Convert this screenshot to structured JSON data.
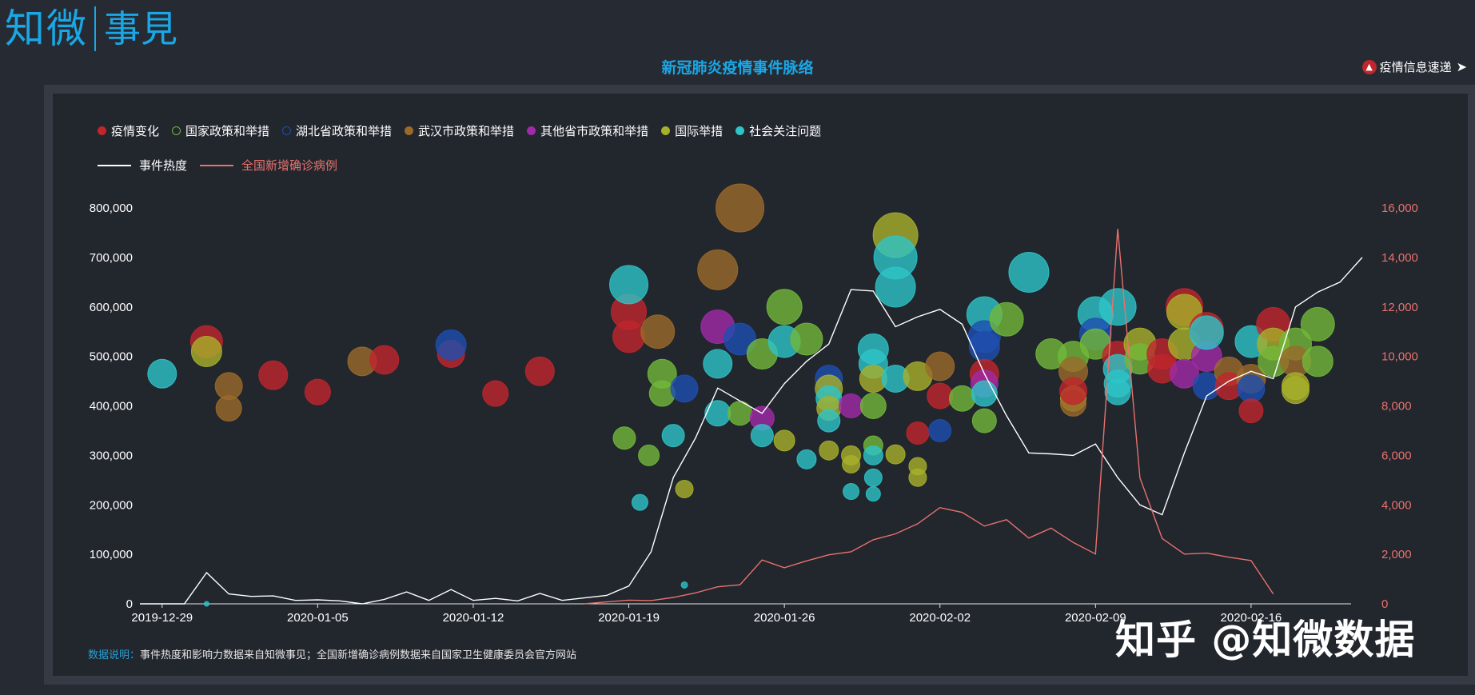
{
  "logo": {
    "main": "知微",
    "sub": "事見"
  },
  "title": "新冠肺炎疫情事件脉络",
  "top_link": {
    "label": "疫情信息速递",
    "icon": "tree-icon",
    "arrow": "arrow-right-icon"
  },
  "legend": {
    "categories": [
      {
        "name": "疫情变化",
        "color": "#c0262c",
        "style": "filled"
      },
      {
        "name": "国家政策和举措",
        "color": "#72b83a",
        "style": "hollow"
      },
      {
        "name": "湖北省政策和举措",
        "color": "#1e4fb0",
        "style": "hollow"
      },
      {
        "name": "武汉市政策和举措",
        "color": "#9b6a2a",
        "style": "filled"
      },
      {
        "name": "其他省市政策和举措",
        "color": "#a12aa8",
        "style": "filled"
      },
      {
        "name": "国际举措",
        "color": "#a8b02a",
        "style": "filled"
      },
      {
        "name": "社会关注问题",
        "color": "#2ec4c8",
        "style": "filled"
      }
    ],
    "lines": [
      {
        "name": "事件热度",
        "color": "#ffffff"
      },
      {
        "name": "全国新增确诊病例",
        "color": "#e8726e"
      }
    ]
  },
  "note": {
    "label": "数据说明：",
    "text": "事件热度和影响力数据来自知微事见；全国新增确诊病例数据来自国家卫生健康委员会官方网站"
  },
  "watermark": "知乎 @知微数据",
  "chart_data": {
    "type": "scatter",
    "x_ticks": [
      "2019-12-29",
      "2020-01-05",
      "2020-01-12",
      "2020-01-19",
      "2020-01-26",
      "2020-02-02",
      "2020-02-09",
      "2020-02-16"
    ],
    "y_left": {
      "ticks": [
        "0",
        "100,000",
        "200,000",
        "300,000",
        "400,000",
        "500,000",
        "600,000",
        "700,000",
        "800,000"
      ],
      "range": [
        0,
        800000
      ]
    },
    "y_right": {
      "ticks": [
        "0",
        "2,000",
        "4,000",
        "6,000",
        "8,000",
        "10,000",
        "12,000",
        "14,000",
        "16,000"
      ],
      "range": [
        0,
        16000
      ]
    },
    "x_range_days": [
      -1,
      53.5
    ],
    "x_origin_date": "2019-12-29",
    "series_lines": [
      {
        "name": "事件热度",
        "axis": "left",
        "points": [
          [
            -1,
            0
          ],
          [
            1,
            0
          ],
          [
            2,
            63000
          ],
          [
            3,
            20000
          ],
          [
            4,
            15000
          ],
          [
            5,
            16000
          ],
          [
            6,
            7000
          ],
          [
            7,
            8000
          ],
          [
            8,
            6000
          ],
          [
            9,
            0
          ],
          [
            10,
            9000
          ],
          [
            11,
            24000
          ],
          [
            12,
            7000
          ],
          [
            13,
            29000
          ],
          [
            14,
            7000
          ],
          [
            15,
            11000
          ],
          [
            16,
            6000
          ],
          [
            17,
            21000
          ],
          [
            18,
            7000
          ],
          [
            19,
            12000
          ],
          [
            20,
            17000
          ],
          [
            21,
            36000
          ],
          [
            22,
            105000
          ],
          [
            23,
            255000
          ],
          [
            24,
            335000
          ],
          [
            25,
            436000
          ],
          [
            26,
            410000
          ],
          [
            27,
            385000
          ],
          [
            28,
            445000
          ],
          [
            29,
            490000
          ],
          [
            30,
            525000
          ],
          [
            31,
            635000
          ],
          [
            32,
            632000
          ],
          [
            33,
            560000
          ],
          [
            34,
            580000
          ],
          [
            35,
            595000
          ],
          [
            36,
            565000
          ],
          [
            37,
            465000
          ],
          [
            38,
            380000
          ],
          [
            39,
            305000
          ],
          [
            40,
            303000
          ],
          [
            41,
            300000
          ],
          [
            42,
            323000
          ],
          [
            43,
            255000
          ],
          [
            44,
            200000
          ],
          [
            45,
            180000
          ],
          [
            46,
            305000
          ],
          [
            47,
            420000
          ],
          [
            48,
            450000
          ],
          [
            49,
            470000
          ],
          [
            50,
            455000
          ],
          [
            51,
            600000
          ],
          [
            52,
            630000
          ],
          [
            53,
            650000
          ],
          [
            54,
            700000
          ]
        ]
      },
      {
        "name": "全国新增确诊病例",
        "axis": "right",
        "points": [
          [
            19,
            0
          ],
          [
            20,
            77
          ],
          [
            21,
            149
          ],
          [
            22,
            131
          ],
          [
            23,
            259
          ],
          [
            24,
            444
          ],
          [
            25,
            688
          ],
          [
            26,
            769
          ],
          [
            27,
            1771
          ],
          [
            28,
            1459
          ],
          [
            29,
            1737
          ],
          [
            30,
            1982
          ],
          [
            31,
            2102
          ],
          [
            32,
            2590
          ],
          [
            33,
            2829
          ],
          [
            34,
            3235
          ],
          [
            35,
            3887
          ],
          [
            36,
            3694
          ],
          [
            37,
            3143
          ],
          [
            38,
            3399
          ],
          [
            39,
            2656
          ],
          [
            40,
            3062
          ],
          [
            41,
            2478
          ],
          [
            42,
            2015
          ],
          [
            43,
            15152
          ],
          [
            44,
            5090
          ],
          [
            45,
            2641
          ],
          [
            46,
            2009
          ],
          [
            47,
            2048
          ],
          [
            48,
            1886
          ],
          [
            49,
            1749
          ],
          [
            50,
            394
          ]
        ]
      }
    ],
    "bubbles": [
      {
        "day": 0,
        "y": 465000,
        "r": 18,
        "cat": 6
      },
      {
        "day": 2,
        "y": 530000,
        "r": 20,
        "cat": 0
      },
      {
        "day": 2,
        "y": 510000,
        "r": 19,
        "cat": 5
      },
      {
        "day": 3,
        "y": 440000,
        "r": 17,
        "cat": 3
      },
      {
        "day": 3,
        "y": 395000,
        "r": 16,
        "cat": 3
      },
      {
        "day": 5,
        "y": 462000,
        "r": 18,
        "cat": 0
      },
      {
        "day": 7,
        "y": 428000,
        "r": 16,
        "cat": 0
      },
      {
        "day": 9,
        "y": 490000,
        "r": 18,
        "cat": 3
      },
      {
        "day": 10,
        "y": 493000,
        "r": 18,
        "cat": 0
      },
      {
        "day": 13,
        "y": 505000,
        "r": 17,
        "cat": 0
      },
      {
        "day": 13,
        "y": 523000,
        "r": 19,
        "cat": 2
      },
      {
        "day": 15,
        "y": 425000,
        "r": 16,
        "cat": 0
      },
      {
        "day": 17,
        "y": 470000,
        "r": 18,
        "cat": 0
      },
      {
        "day": 20.8,
        "y": 335000,
        "r": 14,
        "cat": 1
      },
      {
        "day": 21,
        "y": 590000,
        "r": 22,
        "cat": 0
      },
      {
        "day": 21,
        "y": 540000,
        "r": 20,
        "cat": 0
      },
      {
        "day": 21,
        "y": 645000,
        "r": 24,
        "cat": 6
      },
      {
        "day": 21.5,
        "y": 205000,
        "r": 10,
        "cat": 6
      },
      {
        "day": 21.9,
        "y": 300000,
        "r": 13,
        "cat": 1
      },
      {
        "day": 22.3,
        "y": 550000,
        "r": 21,
        "cat": 3
      },
      {
        "day": 22.5,
        "y": 465000,
        "r": 18,
        "cat": 1
      },
      {
        "day": 22.5,
        "y": 425000,
        "r": 16,
        "cat": 1
      },
      {
        "day": 23,
        "y": 340000,
        "r": 14,
        "cat": 6
      },
      {
        "day": 23.5,
        "y": 435000,
        "r": 17,
        "cat": 2
      },
      {
        "day": 23.5,
        "y": 232000,
        "r": 11,
        "cat": 5
      },
      {
        "day": 23.5,
        "y": 38000,
        "r": 4,
        "cat": 6
      },
      {
        "day": 25,
        "y": 675000,
        "r": 25,
        "cat": 3
      },
      {
        "day": 25,
        "y": 560000,
        "r": 21,
        "cat": 4
      },
      {
        "day": 25,
        "y": 485000,
        "r": 18,
        "cat": 6
      },
      {
        "day": 25,
        "y": 385000,
        "r": 16,
        "cat": 6
      },
      {
        "day": 26,
        "y": 800000,
        "r": 30,
        "cat": 3
      },
      {
        "day": 26,
        "y": 535000,
        "r": 20,
        "cat": 2
      },
      {
        "day": 26,
        "y": 385000,
        "r": 15,
        "cat": 1
      },
      {
        "day": 27,
        "y": 505000,
        "r": 19,
        "cat": 1
      },
      {
        "day": 27,
        "y": 375000,
        "r": 15,
        "cat": 4
      },
      {
        "day": 27,
        "y": 340000,
        "r": 14,
        "cat": 6
      },
      {
        "day": 28,
        "y": 600000,
        "r": 22,
        "cat": 1
      },
      {
        "day": 28,
        "y": 530000,
        "r": 20,
        "cat": 6
      },
      {
        "day": 28,
        "y": 330000,
        "r": 13,
        "cat": 5
      },
      {
        "day": 29,
        "y": 535000,
        "r": 20,
        "cat": 1
      },
      {
        "day": 29,
        "y": 292000,
        "r": 12,
        "cat": 6
      },
      {
        "day": 30,
        "y": 455000,
        "r": 17,
        "cat": 2
      },
      {
        "day": 30,
        "y": 435000,
        "r": 17,
        "cat": 5
      },
      {
        "day": 30,
        "y": 415000,
        "r": 16,
        "cat": 6
      },
      {
        "day": 30,
        "y": 395000,
        "r": 15,
        "cat": 5
      },
      {
        "day": 30,
        "y": 370000,
        "r": 14,
        "cat": 6
      },
      {
        "day": 30,
        "y": 310000,
        "r": 12,
        "cat": 5
      },
      {
        "day": 31,
        "y": 400000,
        "r": 15,
        "cat": 4
      },
      {
        "day": 31,
        "y": 300000,
        "r": 12,
        "cat": 5
      },
      {
        "day": 31,
        "y": 282000,
        "r": 11,
        "cat": 5
      },
      {
        "day": 31,
        "y": 227000,
        "r": 10,
        "cat": 6
      },
      {
        "day": 32,
        "y": 515000,
        "r": 19,
        "cat": 6
      },
      {
        "day": 32,
        "y": 485000,
        "r": 18,
        "cat": 6
      },
      {
        "day": 32,
        "y": 455000,
        "r": 17,
        "cat": 5
      },
      {
        "day": 32,
        "y": 400000,
        "r": 16,
        "cat": 1
      },
      {
        "day": 32,
        "y": 320000,
        "r": 12,
        "cat": 1
      },
      {
        "day": 32,
        "y": 300000,
        "r": 12,
        "cat": 6
      },
      {
        "day": 32,
        "y": 255000,
        "r": 11,
        "cat": 6
      },
      {
        "day": 32,
        "y": 222000,
        "r": 9,
        "cat": 6
      },
      {
        "day": 33,
        "y": 745000,
        "r": 28,
        "cat": 5
      },
      {
        "day": 33,
        "y": 700000,
        "r": 27,
        "cat": 6
      },
      {
        "day": 33,
        "y": 640000,
        "r": 25,
        "cat": 6
      },
      {
        "day": 33,
        "y": 455000,
        "r": 17,
        "cat": 6
      },
      {
        "day": 33,
        "y": 302000,
        "r": 12,
        "cat": 5
      },
      {
        "day": 34,
        "y": 460000,
        "r": 18,
        "cat": 5
      },
      {
        "day": 34,
        "y": 345000,
        "r": 14,
        "cat": 0
      },
      {
        "day": 34,
        "y": 278000,
        "r": 11,
        "cat": 5
      },
      {
        "day": 34,
        "y": 255000,
        "r": 11,
        "cat": 5
      },
      {
        "day": 35,
        "y": 480000,
        "r": 18,
        "cat": 3
      },
      {
        "day": 35,
        "y": 420000,
        "r": 16,
        "cat": 0
      },
      {
        "day": 35,
        "y": 350000,
        "r": 14,
        "cat": 2
      },
      {
        "day": 36,
        "y": 415000,
        "r": 16,
        "cat": 1
      },
      {
        "day": 37,
        "y": 585000,
        "r": 22,
        "cat": 6
      },
      {
        "day": 37,
        "y": 540000,
        "r": 20,
        "cat": 2
      },
      {
        "day": 37,
        "y": 520000,
        "r": 19,
        "cat": 2
      },
      {
        "day": 37,
        "y": 465000,
        "r": 18,
        "cat": 0
      },
      {
        "day": 37,
        "y": 445000,
        "r": 17,
        "cat": 4
      },
      {
        "day": 37,
        "y": 425000,
        "r": 16,
        "cat": 6
      },
      {
        "day": 37,
        "y": 370000,
        "r": 15,
        "cat": 1
      },
      {
        "day": 38,
        "y": 575000,
        "r": 21,
        "cat": 1
      },
      {
        "day": 39,
        "y": 670000,
        "r": 25,
        "cat": 6
      },
      {
        "day": 40,
        "y": 505000,
        "r": 19,
        "cat": 1
      },
      {
        "day": 41,
        "y": 500000,
        "r": 19,
        "cat": 1
      },
      {
        "day": 41,
        "y": 470000,
        "r": 18,
        "cat": 3
      },
      {
        "day": 41,
        "y": 415000,
        "r": 16,
        "cat": 5
      },
      {
        "day": 41,
        "y": 405000,
        "r": 16,
        "cat": 3
      },
      {
        "day": 41,
        "y": 430000,
        "r": 17,
        "cat": 0
      },
      {
        "day": 42,
        "y": 585000,
        "r": 22,
        "cat": 6
      },
      {
        "day": 42,
        "y": 545000,
        "r": 20,
        "cat": 2
      },
      {
        "day": 42,
        "y": 525000,
        "r": 19,
        "cat": 1
      },
      {
        "day": 43,
        "y": 600000,
        "r": 23,
        "cat": 6
      },
      {
        "day": 43,
        "y": 500000,
        "r": 19,
        "cat": 0
      },
      {
        "day": 43,
        "y": 475000,
        "r": 18,
        "cat": 6
      },
      {
        "day": 43,
        "y": 445000,
        "r": 17,
        "cat": 6
      },
      {
        "day": 43,
        "y": 428000,
        "r": 16,
        "cat": 6
      },
      {
        "day": 44,
        "y": 525000,
        "r": 20,
        "cat": 5
      },
      {
        "day": 44,
        "y": 495000,
        "r": 19,
        "cat": 1
      },
      {
        "day": 45,
        "y": 505000,
        "r": 19,
        "cat": 0
      },
      {
        "day": 45,
        "y": 475000,
        "r": 18,
        "cat": 0
      },
      {
        "day": 46,
        "y": 600000,
        "r": 23,
        "cat": 0
      },
      {
        "day": 46,
        "y": 590000,
        "r": 22,
        "cat": 5
      },
      {
        "day": 46,
        "y": 525000,
        "r": 20,
        "cat": 5
      },
      {
        "day": 46,
        "y": 465000,
        "r": 18,
        "cat": 4
      },
      {
        "day": 47,
        "y": 555000,
        "r": 21,
        "cat": 0
      },
      {
        "day": 47,
        "y": 500000,
        "r": 19,
        "cat": 4
      },
      {
        "day": 47,
        "y": 440000,
        "r": 17,
        "cat": 2
      },
      {
        "day": 47,
        "y": 548000,
        "r": 21,
        "cat": 6
      },
      {
        "day": 48,
        "y": 470000,
        "r": 18,
        "cat": 3
      },
      {
        "day": 48,
        "y": 440000,
        "r": 17,
        "cat": 0
      },
      {
        "day": 49,
        "y": 455000,
        "r": 18,
        "cat": 3
      },
      {
        "day": 49,
        "y": 435000,
        "r": 17,
        "cat": 2
      },
      {
        "day": 49,
        "y": 390000,
        "r": 15,
        "cat": 0
      },
      {
        "day": 49,
        "y": 530000,
        "r": 20,
        "cat": 6
      },
      {
        "day": 50,
        "y": 565000,
        "r": 21,
        "cat": 0
      },
      {
        "day": 50,
        "y": 525000,
        "r": 20,
        "cat": 5
      },
      {
        "day": 50,
        "y": 490000,
        "r": 19,
        "cat": 1
      },
      {
        "day": 51,
        "y": 525000,
        "r": 20,
        "cat": 1
      },
      {
        "day": 51,
        "y": 490000,
        "r": 19,
        "cat": 3
      },
      {
        "day": 51,
        "y": 440000,
        "r": 17,
        "cat": 5
      },
      {
        "day": 51,
        "y": 432000,
        "r": 17,
        "cat": 5
      },
      {
        "day": 52,
        "y": 565000,
        "r": 21,
        "cat": 1
      },
      {
        "day": 52,
        "y": 490000,
        "r": 19,
        "cat": 1
      },
      {
        "day": 2,
        "y": 0,
        "r": 3,
        "cat": 6
      }
    ]
  }
}
